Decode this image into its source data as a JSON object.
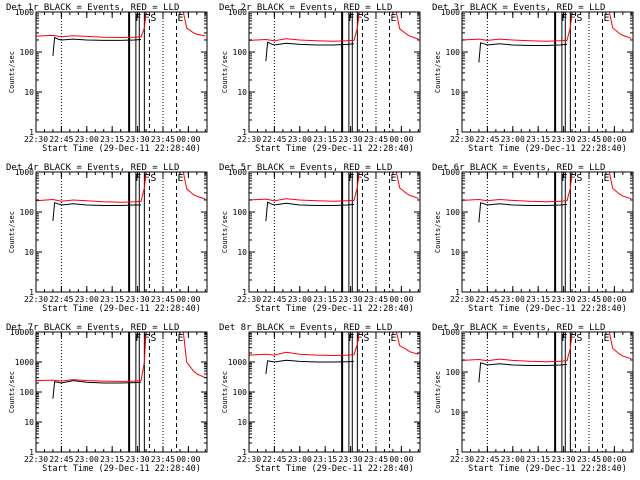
{
  "figure": {
    "background": "#ffffff",
    "colors": {
      "events": "#000000",
      "lld": "#ff0000"
    }
  },
  "chart_data": [
    {
      "type": "line",
      "title": "Det 1r BLACK = Events, RED = LLD",
      "xlabel": "Start Time (29-Dec-11 22:28:40)",
      "ylabel": "Counts/sec",
      "x_ticks": [
        "22:30",
        "22:45",
        "23:00",
        "23:15",
        "23:30",
        "23:45",
        "00:00"
      ],
      "y_ticks": [
        "1",
        "10",
        "100",
        "1000"
      ],
      "ylim": [
        1,
        1000
      ],
      "yscale": "log",
      "xlim": [
        "22:30",
        "00:11"
      ],
      "events_level": 200,
      "lld_level": 240,
      "lld_peak": 1000,
      "markers": [
        "F",
        "F",
        "S",
        "E"
      ],
      "series": [
        {
          "name": "Events",
          "color": "#000000",
          "x": [
            "22:40",
            "22:41",
            "22:43",
            "22:45",
            "22:52",
            "23:00",
            "23:10",
            "23:20",
            "23:28",
            "23:32"
          ],
          "y": [
            80,
            230,
            210,
            200,
            210,
            200,
            195,
            195,
            200,
            205
          ]
        },
        {
          "name": "LLD",
          "color": "#ff0000",
          "x": [
            "22:30",
            "22:40",
            "22:45",
            "22:52",
            "23:00",
            "23:10",
            "23:20",
            "23:28",
            "23:32",
            "23:34",
            "23:35",
            "23:36",
            "23:40",
            "23:50",
            "23:55",
            "23:57",
            "23:59",
            "00:03",
            "00:05",
            "00:10"
          ],
          "y": [
            250,
            260,
            240,
            255,
            245,
            235,
            230,
            235,
            240,
            400,
            1000,
            1000,
            1000,
            1000,
            1000,
            1000,
            400,
            300,
            280,
            250
          ]
        }
      ]
    },
    {
      "type": "line",
      "title": "Det 2r BLACK = Events, RED = LLD",
      "xlabel": "Start Time (29-Dec-11 22:28:40)",
      "ylabel": "Counts/sec",
      "x_ticks": [
        "22:30",
        "22:45",
        "23:00",
        "23:15",
        "23:30",
        "23:45",
        "00:00"
      ],
      "y_ticks": [
        "1",
        "10",
        "100",
        "1000"
      ],
      "ylim": [
        1,
        1000
      ],
      "yscale": "log",
      "xlim": [
        "22:30",
        "00:11"
      ],
      "events_level": 150,
      "lld_level": 190,
      "lld_peak": 1000,
      "markers": [
        "F",
        "F",
        "S",
        "E"
      ],
      "series": [
        {
          "name": "Events",
          "color": "#000000",
          "x": [
            "22:40",
            "22:41",
            "22:43",
            "22:45",
            "22:52",
            "23:00",
            "23:10",
            "23:20",
            "23:28",
            "23:32"
          ],
          "y": [
            60,
            175,
            160,
            150,
            165,
            155,
            150,
            150,
            155,
            160
          ]
        },
        {
          "name": "LLD",
          "color": "#ff0000",
          "x": [
            "22:30",
            "22:40",
            "22:45",
            "22:52",
            "23:00",
            "23:10",
            "23:20",
            "23:28",
            "23:32",
            "23:34",
            "23:35",
            "23:36",
            "23:40",
            "23:50",
            "23:55",
            "23:57",
            "23:59",
            "00:03",
            "00:05",
            "00:10"
          ],
          "y": [
            195,
            205,
            190,
            215,
            200,
            190,
            185,
            190,
            195,
            400,
            1000,
            1000,
            1000,
            1000,
            1000,
            1000,
            380,
            280,
            250,
            210
          ]
        }
      ]
    },
    {
      "type": "line",
      "title": "Det 3r BLACK = Events, RED = LLD",
      "xlabel": "Start Time (29-Dec-11 22:28:40)",
      "ylabel": "Counts/sec",
      "x_ticks": [
        "22:30",
        "22:45",
        "23:00",
        "23:15",
        "23:30",
        "23:45",
        "00:00"
      ],
      "y_ticks": [
        "1",
        "10",
        "100",
        "1000"
      ],
      "ylim": [
        1,
        1000
      ],
      "yscale": "log",
      "xlim": [
        "22:30",
        "00:11"
      ],
      "events_level": 150,
      "lld_level": 190,
      "lld_peak": 1000,
      "markers": [
        "F",
        "F",
        "S",
        "E"
      ],
      "series": [
        {
          "name": "Events",
          "color": "#000000",
          "x": [
            "22:40",
            "22:41",
            "22:43",
            "22:45",
            "22:52",
            "23:00",
            "23:10",
            "23:20",
            "23:28",
            "23:32"
          ],
          "y": [
            55,
            170,
            160,
            150,
            160,
            150,
            145,
            145,
            150,
            155
          ]
        },
        {
          "name": "LLD",
          "color": "#ff0000",
          "x": [
            "22:30",
            "22:40",
            "22:45",
            "22:52",
            "23:00",
            "23:10",
            "23:20",
            "23:28",
            "23:32",
            "23:34",
            "23:35",
            "23:36",
            "23:40",
            "23:50",
            "23:55",
            "23:57",
            "23:59",
            "00:03",
            "00:05",
            "00:10"
          ],
          "y": [
            200,
            210,
            195,
            210,
            200,
            190,
            185,
            190,
            195,
            420,
            1000,
            1000,
            1000,
            1000,
            1000,
            1000,
            400,
            290,
            260,
            220
          ]
        }
      ]
    },
    {
      "type": "line",
      "title": "Det 4r BLACK = Events, RED = LLD",
      "xlabel": "Start Time (29-Dec-11 22:28:40)",
      "ylabel": "Counts/sec",
      "x_ticks": [
        "22:30",
        "22:45",
        "23:00",
        "23:15",
        "23:30",
        "23:45",
        "00:00"
      ],
      "y_ticks": [
        "1",
        "10",
        "100",
        "1000"
      ],
      "ylim": [
        1,
        1000
      ],
      "yscale": "log",
      "xlim": [
        "22:30",
        "00:11"
      ],
      "events_level": 150,
      "lld_level": 185,
      "lld_peak": 1000,
      "markers": [
        "F",
        "F",
        "S",
        "E"
      ],
      "series": [
        {
          "name": "Events",
          "color": "#000000",
          "x": [
            "22:40",
            "22:41",
            "22:43",
            "22:45",
            "22:52",
            "23:00",
            "23:10",
            "23:20",
            "23:28",
            "23:32"
          ],
          "y": [
            60,
            170,
            160,
            150,
            160,
            150,
            145,
            145,
            150,
            150
          ]
        },
        {
          "name": "LLD",
          "color": "#ff0000",
          "x": [
            "22:30",
            "22:40",
            "22:45",
            "22:52",
            "23:00",
            "23:10",
            "23:20",
            "23:28",
            "23:32",
            "23:34",
            "23:35",
            "23:36",
            "23:40",
            "23:50",
            "23:55",
            "23:57",
            "23:59",
            "00:03",
            "00:05",
            "00:10"
          ],
          "y": [
            190,
            205,
            185,
            200,
            190,
            180,
            175,
            180,
            185,
            400,
            1000,
            1000,
            1000,
            1000,
            1000,
            1000,
            380,
            270,
            250,
            210
          ]
        }
      ]
    },
    {
      "type": "line",
      "title": "Det 5r BLACK = Events, RED = LLD",
      "xlabel": "Start Time (29-Dec-11 22:28:40)",
      "ylabel": "Counts/sec",
      "x_ticks": [
        "22:30",
        "22:45",
        "23:00",
        "23:15",
        "23:30",
        "23:45",
        "00:00"
      ],
      "y_ticks": [
        "1",
        "10",
        "100",
        "1000"
      ],
      "ylim": [
        1,
        1000
      ],
      "yscale": "log",
      "xlim": [
        "22:30",
        "00:11"
      ],
      "events_level": 150,
      "lld_level": 190,
      "lld_peak": 1000,
      "markers": [
        "F",
        "F",
        "S",
        "E"
      ],
      "series": [
        {
          "name": "Events",
          "color": "#000000",
          "x": [
            "22:40",
            "22:41",
            "22:43",
            "22:45",
            "22:52",
            "23:00",
            "23:10",
            "23:20",
            "23:28",
            "23:32"
          ],
          "y": [
            60,
            175,
            160,
            150,
            165,
            150,
            145,
            145,
            150,
            155
          ]
        },
        {
          "name": "LLD",
          "color": "#ff0000",
          "x": [
            "22:30",
            "22:40",
            "22:45",
            "22:52",
            "23:00",
            "23:10",
            "23:20",
            "23:28",
            "23:32",
            "23:34",
            "23:35",
            "23:36",
            "23:40",
            "23:50",
            "23:55",
            "23:57",
            "23:59",
            "00:03",
            "00:05",
            "00:10"
          ],
          "y": [
            200,
            210,
            190,
            215,
            200,
            190,
            185,
            190,
            195,
            420,
            1000,
            1000,
            1000,
            1000,
            1000,
            1000,
            400,
            290,
            260,
            220
          ]
        }
      ]
    },
    {
      "type": "line",
      "title": "Det 6r BLACK = Events, RED = LLD",
      "xlabel": "Start Time (29-Dec-11 22:28:40)",
      "ylabel": "Counts/sec",
      "x_ticks": [
        "22:30",
        "22:45",
        "23:00",
        "23:15",
        "23:30",
        "23:45",
        "00:00"
      ],
      "y_ticks": [
        "1",
        "10",
        "100",
        "1000"
      ],
      "ylim": [
        1,
        1000
      ],
      "yscale": "log",
      "xlim": [
        "22:30",
        "00:11"
      ],
      "events_level": 150,
      "lld_level": 190,
      "lld_peak": 1000,
      "markers": [
        "F",
        "F",
        "S",
        "E"
      ],
      "series": [
        {
          "name": "Events",
          "color": "#000000",
          "x": [
            "22:40",
            "22:41",
            "22:43",
            "22:45",
            "22:52",
            "23:00",
            "23:10",
            "23:20",
            "23:28",
            "23:32"
          ],
          "y": [
            55,
            170,
            160,
            150,
            160,
            150,
            145,
            145,
            150,
            155
          ]
        },
        {
          "name": "LLD",
          "color": "#ff0000",
          "x": [
            "22:30",
            "22:40",
            "22:45",
            "22:52",
            "23:00",
            "23:10",
            "23:20",
            "23:28",
            "23:32",
            "23:34",
            "23:35",
            "23:36",
            "23:40",
            "23:50",
            "23:55",
            "23:57",
            "23:59",
            "00:03",
            "00:05",
            "00:10"
          ],
          "y": [
            195,
            205,
            190,
            205,
            195,
            185,
            180,
            185,
            190,
            400,
            1000,
            1000,
            1000,
            1000,
            1000,
            1000,
            390,
            280,
            250,
            215
          ]
        }
      ]
    },
    {
      "type": "line",
      "title": "Det 7r BLACK = Events, RED = LLD",
      "xlabel": "Start Time (29-Dec-11 22:28:40)",
      "ylabel": "Counts/sec",
      "x_ticks": [
        "22:30",
        "22:45",
        "23:00",
        "23:15",
        "23:30",
        "23:45",
        "00:00"
      ],
      "y_ticks": [
        "1",
        "10",
        "100",
        "1000",
        "10000"
      ],
      "ylim": [
        1,
        10000
      ],
      "yscale": "log",
      "xlim": [
        "22:30",
        "00:11"
      ],
      "events_level": 200,
      "lld_level": 230,
      "lld_peak": 10000,
      "markers": [
        "F",
        "F",
        "S",
        "E"
      ],
      "series": [
        {
          "name": "Events",
          "color": "#000000",
          "x": [
            "22:40",
            "22:41",
            "22:43",
            "22:45",
            "22:52",
            "23:00",
            "23:10",
            "23:20",
            "23:28",
            "23:32"
          ],
          "y": [
            60,
            220,
            210,
            200,
            240,
            210,
            200,
            200,
            205,
            210
          ]
        },
        {
          "name": "LLD",
          "color": "#ff0000",
          "x": [
            "22:30",
            "22:40",
            "22:45",
            "22:52",
            "23:00",
            "23:10",
            "23:20",
            "23:28",
            "23:32",
            "23:34",
            "23:35",
            "23:36",
            "23:40",
            "23:50",
            "23:55",
            "23:57",
            "23:59",
            "00:03",
            "00:05",
            "00:10"
          ],
          "y": [
            240,
            250,
            230,
            260,
            240,
            230,
            225,
            230,
            240,
            1000,
            10000,
            10000,
            10000,
            10000,
            10000,
            10000,
            1000,
            500,
            400,
            300
          ]
        }
      ]
    },
    {
      "type": "line",
      "title": "Det 8r BLACK = Events, RED = LLD",
      "xlabel": "Start Time (29-Dec-11 22:28:40)",
      "ylabel": "Counts/sec",
      "x_ticks": [
        "22:30",
        "22:45",
        "23:00",
        "23:15",
        "23:30",
        "23:45",
        "00:00"
      ],
      "y_ticks": [
        "1",
        "10",
        "100",
        "1000"
      ],
      "ylim": [
        1,
        10000
      ],
      "yscale": "log",
      "xlim": [
        "22:30",
        "00:11"
      ],
      "events_level": 1000,
      "lld_level": 1700,
      "lld_peak": 10000,
      "markers": [
        "F",
        "F",
        "S",
        "E"
      ],
      "series": [
        {
          "name": "Events",
          "color": "#000000",
          "x": [
            "22:40",
            "22:41",
            "22:43",
            "22:45",
            "22:52",
            "23:00",
            "23:10",
            "23:20",
            "23:28",
            "23:32"
          ],
          "y": [
            400,
            1100,
            1050,
            1000,
            1150,
            1050,
            1000,
            1000,
            1020,
            1050
          ]
        },
        {
          "name": "LLD",
          "color": "#ff0000",
          "x": [
            "22:30",
            "22:40",
            "22:45",
            "22:52",
            "23:00",
            "23:10",
            "23:20",
            "23:28",
            "23:32",
            "23:34",
            "23:35",
            "23:36",
            "23:40",
            "23:50",
            "23:55",
            "23:57",
            "23:59",
            "00:03",
            "00:05",
            "00:10"
          ],
          "y": [
            1700,
            1800,
            1700,
            2100,
            1800,
            1700,
            1650,
            1700,
            1750,
            4000,
            10000,
            10000,
            10000,
            10000,
            10000,
            10000,
            3500,
            2600,
            2200,
            1800
          ]
        }
      ]
    },
    {
      "type": "line",
      "title": "Det 9r BLACK = Events, RED = LLD",
      "xlabel": "Start Time (29-Dec-11 22:28:40)",
      "ylabel": "Counts/sec",
      "x_ticks": [
        "22:30",
        "22:45",
        "23:00",
        "23:15",
        "23:30",
        "23:45",
        "00:00"
      ],
      "y_ticks": [
        "1",
        "10",
        "100",
        "1000"
      ],
      "ylim": [
        1,
        1000
      ],
      "yscale": "log",
      "xlim": [
        "22:30",
        "00:11"
      ],
      "events_level": 150,
      "lld_level": 190,
      "lld_peak": 1000,
      "markers": [
        "F",
        "F",
        "S",
        "E"
      ],
      "series": [
        {
          "name": "Events",
          "color": "#000000",
          "x": [
            "22:40",
            "22:41",
            "22:43",
            "22:45",
            "22:52",
            "23:00",
            "23:10",
            "23:20",
            "23:28",
            "23:32"
          ],
          "y": [
            55,
            170,
            160,
            150,
            160,
            150,
            145,
            145,
            150,
            155
          ]
        },
        {
          "name": "LLD",
          "color": "#ff0000",
          "x": [
            "22:30",
            "22:40",
            "22:45",
            "22:52",
            "23:00",
            "23:10",
            "23:20",
            "23:28",
            "23:32",
            "23:34",
            "23:35",
            "23:36",
            "23:40",
            "23:50",
            "23:55",
            "23:57",
            "23:59",
            "00:03",
            "00:05",
            "00:10"
          ],
          "y": [
            195,
            205,
            190,
            210,
            195,
            185,
            180,
            185,
            190,
            400,
            1000,
            1000,
            1000,
            1000,
            1000,
            1000,
            390,
            280,
            250,
            215
          ]
        }
      ]
    }
  ]
}
